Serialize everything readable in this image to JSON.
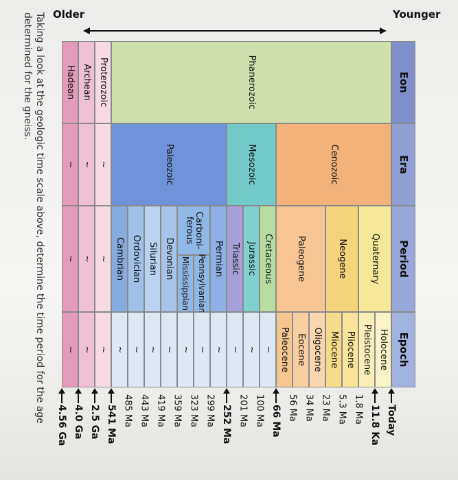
{
  "timeline": {
    "older": "Older",
    "younger": "Younger"
  },
  "table": {
    "headers": [
      "Eon",
      "Era",
      "Period",
      "Epoch"
    ],
    "eons": [
      "Phanerozoic",
      "Proterozoic",
      "Archean",
      "Hadean"
    ],
    "eras": [
      "Cenozoic",
      "Mesozoic",
      "Paleozoic",
      "~",
      "~",
      "~"
    ],
    "periods": [
      "Quaternary",
      "Neogene",
      "Paleogene",
      "Cretaceous",
      "Jurassic",
      "Triassic",
      "Permian",
      [
        "Carboni-",
        "ferous"
      ],
      "Devonian",
      "Silurian",
      "Ordovician",
      "Cambrian",
      "~",
      "~",
      "~"
    ],
    "subperiods": [
      "Pennsylvanian",
      "Mississippian"
    ],
    "epochs": [
      "Holocene",
      "Pleistocene",
      "Pliocene",
      "Miocene",
      "Oligocene",
      "Eocene",
      "Paleocene",
      "~",
      "~",
      "~",
      "~",
      "~",
      "~",
      "~",
      "~",
      "~",
      "~",
      "~",
      "~",
      "~"
    ],
    "times": [
      {
        "label": "Today",
        "bold": true
      },
      {
        "label": "11.8 Ka",
        "bold": true
      },
      {
        "label": "1.8 Ma"
      },
      {
        "label": "5.3 Ma"
      },
      {
        "label": "23 Ma"
      },
      {
        "label": "34 Ma"
      },
      {
        "label": "56 Ma"
      },
      {
        "label": "66 Ma",
        "bold": true
      },
      {
        "label": "100 Ma"
      },
      {
        "label": "201 Ma"
      },
      {
        "label": "252 Ma",
        "bold": true
      },
      {
        "label": "299 Ma"
      },
      {
        "label": "323 Ma"
      },
      {
        "label": "359 Ma"
      },
      {
        "label": "419 Ma"
      },
      {
        "label": "443 Ma"
      },
      {
        "label": "485 Ma"
      },
      {
        "label": "541 Ma",
        "bold": true
      },
      {
        "label": "2.5 Ga",
        "bold": true
      },
      {
        "label": "4.0 Ga",
        "bold": true
      },
      {
        "label": "4.56 Ga",
        "bold": true
      }
    ]
  },
  "caption": "Taking a look at the geologic time scale above, determine the time period for the age determined for the gneiss."
}
